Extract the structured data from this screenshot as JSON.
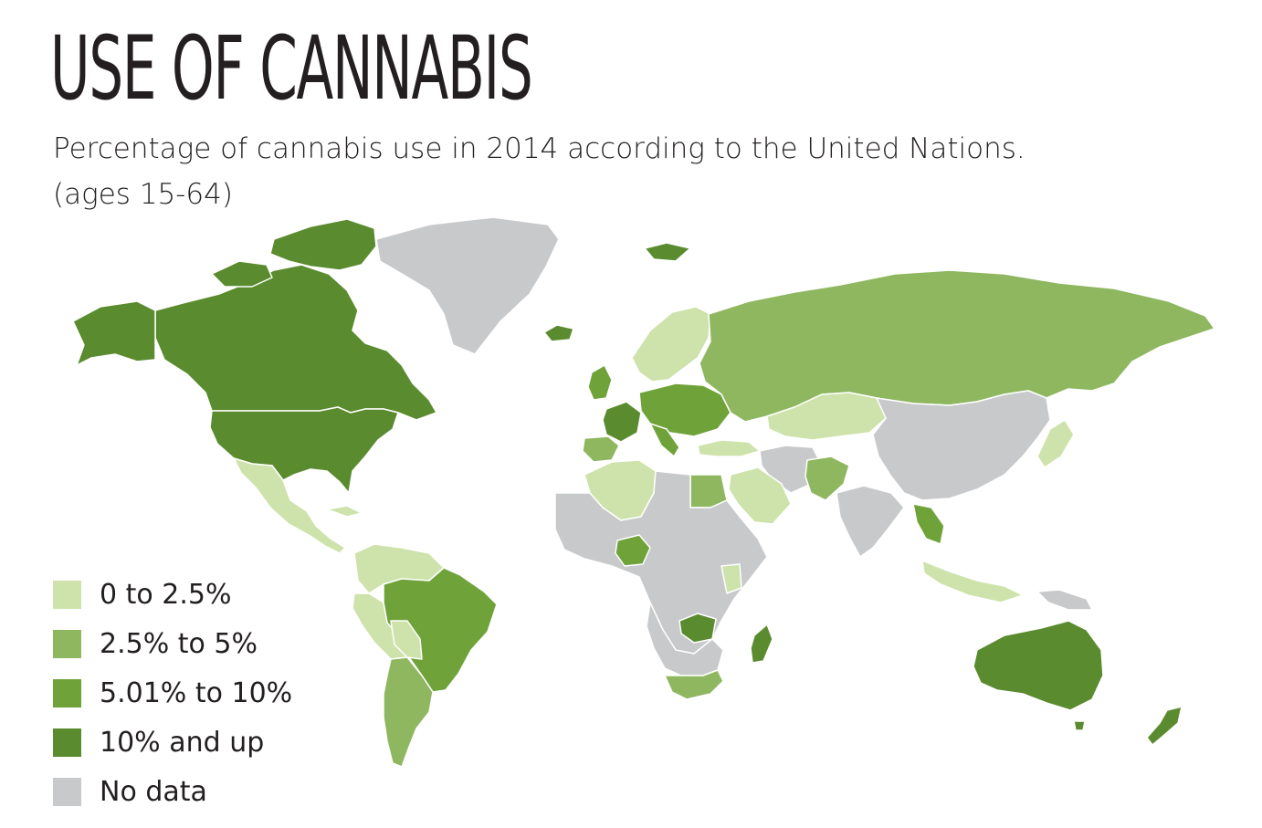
{
  "title": "USE OF CANNABIS",
  "subtitle_line1": "Percentage of cannabis use in 2014 according to the United Nations.",
  "subtitle_line2": "(ages 15-64)",
  "colors": {
    "c0": "#cde3ab",
    "c1": "#8fb760",
    "c2": "#6fa33a",
    "c3": "#5a8b2e",
    "nodata": "#c8c9cb",
    "border": "#ffffff"
  },
  "legend": [
    {
      "label": "0 to 2.5%",
      "color": "#cde3ab"
    },
    {
      "label": "2.5% to 5%",
      "color": "#8fb760"
    },
    {
      "label": "5.01% to 10%",
      "color": "#6fa33a"
    },
    {
      "label": "10% and up",
      "color": "#5a8b2e"
    },
    {
      "label": "No data",
      "color": "#c8c9cb"
    }
  ]
}
